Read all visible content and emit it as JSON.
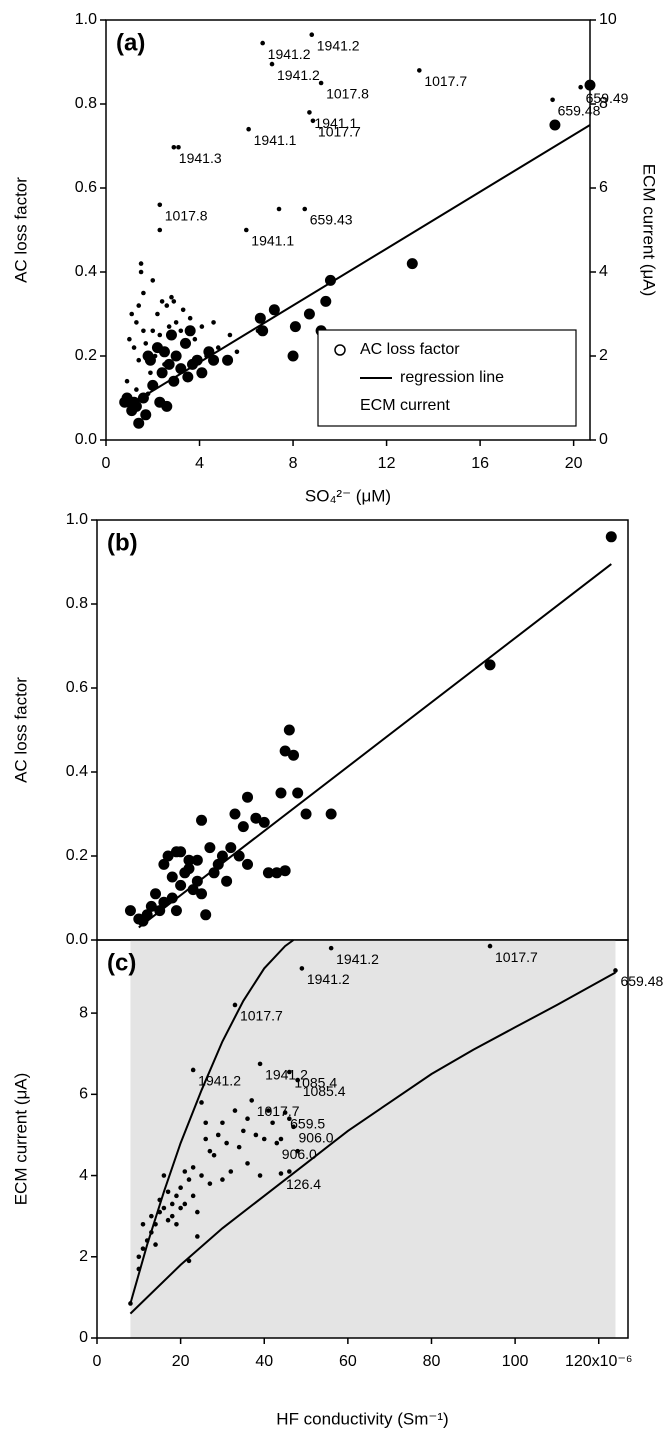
{
  "chart_data": [
    {
      "type": "scatter",
      "panel_label": "(a)",
      "xlabel": "SO₄²⁻ (μM)",
      "ylabel": "AC loss factor",
      "y2label": "ECM current (μA)",
      "xlim": [
        0,
        20.7
      ],
      "xticks": [
        0,
        4,
        8,
        12,
        16,
        20
      ],
      "ylim": [
        0,
        1
      ],
      "yticks": [
        {
          "value": 0,
          "label": "0.0"
        },
        {
          "value": 0.2,
          "label": "0.2"
        },
        {
          "value": 0.4,
          "label": "0.4"
        },
        {
          "value": 0.6,
          "label": "0.6"
        },
        {
          "value": 0.8,
          "label": "0.8"
        },
        {
          "value": 1,
          "label": "1.0"
        }
      ],
      "y2lim": [
        0,
        10
      ],
      "y2ticks": [
        0,
        2,
        4,
        6,
        8,
        10
      ],
      "legend": "lower right",
      "series": [
        {
          "name": "AC loss factor",
          "color": "#000000",
          "marker": "large",
          "x": [
            20.7,
            19.2,
            13.1,
            9.6,
            9.4,
            8.0,
            8.1,
            8.7,
            9.2,
            7.2,
            6.6,
            6.7,
            5.2,
            4.4,
            3.6,
            3.4,
            3.0,
            2.7,
            2.4,
            2.0,
            1.8,
            1.6,
            1.3,
            1.1,
            0.9,
            1.4,
            2.3,
            2.6,
            3.9,
            4.1,
            3.2,
            2.2,
            2.5,
            1.2,
            1.7,
            0.8,
            2.9,
            3.5,
            4.6,
            1.9,
            2.8,
            3.7
          ],
          "values": [
            0.845,
            0.75,
            0.42,
            0.38,
            0.33,
            0.2,
            0.27,
            0.3,
            0.26,
            0.31,
            0.29,
            0.26,
            0.19,
            0.21,
            0.26,
            0.23,
            0.2,
            0.18,
            0.16,
            0.13,
            0.2,
            0.1,
            0.08,
            0.07,
            0.1,
            0.04,
            0.09,
            0.08,
            0.19,
            0.16,
            0.17,
            0.22,
            0.21,
            0.09,
            0.06,
            0.09,
            0.14,
            0.15,
            0.19,
            0.19,
            0.25,
            0.18
          ]
        },
        {
          "name": "regression line",
          "color": "#000000",
          "marker": "line",
          "x": [
            0.9,
            20.7
          ],
          "values": [
            0.08,
            0.75
          ]
        },
        {
          "name": "ECM current",
          "color": "#000000",
          "marker": "small",
          "axis": "y2",
          "x": [
            6.7,
            8.8,
            7.1,
            13.4,
            9.2,
            20.3,
            19.1,
            8.7,
            8.85,
            6.1,
            2.9,
            3.1,
            2.3,
            8.5,
            7.4,
            6.0,
            2.3,
            1.5,
            1.5,
            2.4,
            2.6,
            2.9,
            3.3,
            1.1,
            1.3,
            1.6,
            2.0,
            2.2,
            2.7,
            3.0,
            3.6,
            4.1,
            4.6,
            5.3,
            6.5,
            1.0,
            1.2,
            1.4,
            1.7,
            2.1,
            2.3,
            3.4,
            3.8,
            4.3,
            1.9,
            2.5,
            3.1,
            0.9,
            1.3,
            1.8,
            1.6,
            2.8,
            3.2,
            4.8,
            5.6,
            2.0,
            1.4
          ],
          "values": [
            9.45,
            9.65,
            8.95,
            8.8,
            8.5,
            8.4,
            8.1,
            7.8,
            7.6,
            7.4,
            6.97,
            6.97,
            5.6,
            5.5,
            5.5,
            5.0,
            5.0,
            4.2,
            4.0,
            3.3,
            3.2,
            3.3,
            3.1,
            3.0,
            2.8,
            2.6,
            2.6,
            3.0,
            2.7,
            2.8,
            2.9,
            2.7,
            2.8,
            2.5,
            2.6,
            2.4,
            2.2,
            1.9,
            2.3,
            2.0,
            2.5,
            2.3,
            2.4,
            2.0,
            1.6,
            1.8,
            2.0,
            1.4,
            1.2,
            1.1,
            3.5,
            3.4,
            2.6,
            2.2,
            2.1,
            3.8,
            3.2
          ],
          "point_labels": [
            "1941.2",
            "1941.2",
            "1941.2",
            "1017.7",
            "1017.8",
            "659.49",
            "659.48",
            "1941.1",
            "1017.7",
            "1941.1",
            "1941.3",
            null,
            "1017.8",
            "659.43",
            null,
            "1941.1",
            null,
            null,
            null,
            null,
            null,
            null,
            null,
            null,
            null,
            null,
            null,
            null,
            null,
            null,
            null,
            null,
            null,
            null,
            null,
            null,
            null,
            null,
            null,
            null,
            null,
            null,
            null,
            null,
            null,
            null,
            null,
            null,
            null,
            null,
            null,
            null,
            null,
            null,
            null,
            null,
            null
          ]
        }
      ]
    },
    {
      "type": "scatter",
      "panel_label": "(b)",
      "ylabel": "AC loss factor",
      "xlim": [
        0,
        127
      ],
      "ylim": [
        0,
        1
      ],
      "yticks": [
        {
          "value": 0,
          "label": "0.0"
        },
        {
          "value": 0.2,
          "label": "0.2"
        },
        {
          "value": 0.4,
          "label": "0.4"
        },
        {
          "value": 0.6,
          "label": "0.6"
        },
        {
          "value": 0.8,
          "label": "0.8"
        },
        {
          "value": 1,
          "label": "1.0"
        }
      ],
      "series": [
        {
          "color": "#000000",
          "marker": "large",
          "x": [
            123,
            94,
            56,
            50,
            47,
            48,
            46,
            45,
            43,
            45,
            41,
            44,
            40,
            38,
            36,
            36,
            33,
            34,
            32,
            35,
            30,
            29,
            27,
            25,
            24,
            22,
            20,
            18,
            16,
            15,
            12,
            10,
            8,
            14,
            17,
            19,
            21,
            23,
            26,
            13,
            11,
            18,
            20,
            22,
            24,
            16,
            28,
            31,
            19,
            25
          ],
          "values": [
            0.96,
            0.655,
            0.3,
            0.3,
            0.44,
            0.35,
            0.5,
            0.45,
            0.16,
            0.165,
            0.16,
            0.35,
            0.28,
            0.29,
            0.34,
            0.18,
            0.3,
            0.2,
            0.22,
            0.27,
            0.2,
            0.18,
            0.22,
            0.285,
            0.19,
            0.17,
            0.13,
            0.15,
            0.09,
            0.07,
            0.06,
            0.05,
            0.07,
            0.11,
            0.2,
            0.21,
            0.16,
            0.12,
            0.06,
            0.08,
            0.045,
            0.1,
            0.21,
            0.19,
            0.14,
            0.18,
            0.16,
            0.14,
            0.07,
            0.11
          ]
        },
        {
          "color": "#000000",
          "marker": "line",
          "x": [
            10,
            123
          ],
          "values": [
            0.03,
            0.895
          ]
        }
      ]
    },
    {
      "type": "scatter",
      "panel_label": "(c)",
      "xlabel": "HF conductivity (Sm⁻¹)",
      "ylabel": "ECM current (μA)",
      "xlim": [
        0,
        127
      ],
      "xticks": [
        0,
        20,
        40,
        60,
        80,
        100,
        {
          "value": 120,
          "label": "120x10⁻⁶"
        }
      ],
      "ylim": [
        0,
        9.8
      ],
      "yticks": [
        0,
        2,
        4,
        6,
        8
      ],
      "shaded_xrange": [
        8,
        124
      ],
      "shade_color": "#e4e4e4",
      "series": [
        {
          "color": "#000000",
          "marker": "small",
          "x": [
            56,
            94,
            49,
            124,
            33,
            23,
            39,
            46,
            48,
            37,
            45,
            47,
            43,
            44,
            8,
            10,
            10,
            11,
            11,
            12,
            13,
            13,
            14,
            14,
            15,
            15,
            16,
            16,
            17,
            17,
            18,
            18,
            19,
            19,
            20,
            20,
            21,
            21,
            22,
            22,
            23,
            23,
            24,
            24,
            25,
            25,
            26,
            26,
            27,
            28,
            29,
            30,
            31,
            32,
            33,
            34,
            35,
            36,
            38,
            39,
            40,
            41,
            42,
            44,
            46,
            46,
            48,
            36,
            30,
            27
          ],
          "values": [
            9.6,
            9.65,
            9.1,
            9.05,
            8.2,
            6.6,
            6.75,
            6.55,
            6.35,
            5.85,
            5.55,
            5.2,
            4.8,
            4.05,
            0.85,
            1.7,
            2.0,
            2.2,
            2.8,
            2.4,
            2.6,
            3.0,
            2.3,
            2.8,
            3.1,
            3.4,
            3.2,
            4.0,
            2.9,
            3.6,
            3.3,
            3.0,
            3.5,
            2.8,
            3.7,
            3.2,
            4.1,
            3.3,
            3.9,
            1.9,
            4.2,
            3.5,
            2.5,
            3.1,
            5.8,
            4.0,
            4.9,
            5.3,
            3.8,
            4.5,
            5.0,
            5.3,
            4.8,
            4.1,
            5.6,
            4.7,
            5.1,
            5.4,
            5.0,
            4.0,
            4.9,
            5.6,
            5.3,
            4.9,
            5.4,
            4.1,
            4.6,
            4.3,
            3.9,
            4.6
          ],
          "point_labels": [
            "1941.2",
            "1017.7",
            "1941.2",
            "659.48",
            "1017.7",
            "1941.2",
            "1941.2",
            "1085.4",
            "1085.4",
            "1017.7",
            "659.5",
            "906.0",
            "906.0",
            "126.4",
            null,
            null,
            null,
            null,
            null,
            null,
            null,
            null,
            null,
            null,
            null,
            null,
            null,
            null,
            null,
            null,
            null,
            null,
            null,
            null,
            null,
            null,
            null,
            null,
            null,
            null,
            null,
            null,
            null,
            null,
            null,
            null,
            null,
            null,
            null,
            null,
            null,
            null,
            null,
            null,
            null,
            null,
            null,
            null,
            null,
            null,
            null,
            null,
            null,
            null,
            null,
            null,
            null,
            null,
            null,
            null
          ]
        },
        {
          "color": "#000000",
          "marker": "line",
          "x": [
            8,
            12,
            16,
            20,
            25,
            30,
            35,
            40,
            45,
            47
          ],
          "values": [
            0.85,
            2.3,
            3.6,
            4.8,
            6.1,
            7.3,
            8.3,
            9.1,
            9.65,
            9.8
          ]
        },
        {
          "color": "#000000",
          "marker": "line",
          "x": [
            8,
            20,
            30,
            40,
            50,
            60,
            70,
            80,
            90,
            100,
            110,
            124
          ],
          "values": [
            0.6,
            1.8,
            2.7,
            3.5,
            4.3,
            5.1,
            5.8,
            6.5,
            7.1,
            7.65,
            8.2,
            9.0
          ]
        }
      ]
    }
  ]
}
